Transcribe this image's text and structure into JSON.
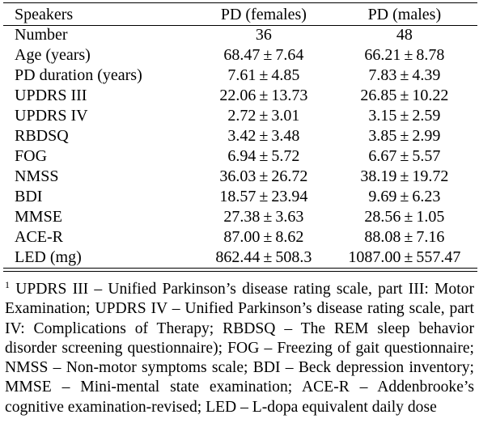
{
  "table": {
    "headers": [
      "Speakers",
      "PD (females)",
      "PD (males)"
    ],
    "rows": [
      {
        "label": "Number",
        "female": "36",
        "male": "48"
      },
      {
        "label": "Age (years)",
        "female_mean": "68.47",
        "female_sd": "7.64",
        "male_mean": "66.21",
        "male_sd": "8.78"
      },
      {
        "label": "PD duration (years)",
        "female_mean": "7.61",
        "female_sd": "4.85",
        "male_mean": "7.83",
        "male_sd": "4.39"
      },
      {
        "label": "UPDRS III",
        "female_mean": "22.06",
        "female_sd": "13.73",
        "male_mean": "26.85",
        "male_sd": "10.22"
      },
      {
        "label": "UPDRS IV",
        "female_mean": "2.72",
        "female_sd": "3.01",
        "male_mean": "3.15",
        "male_sd": "2.59"
      },
      {
        "label": "RBDSQ",
        "female_mean": "3.42",
        "female_sd": "3.48",
        "male_mean": "3.85",
        "male_sd": "2.99"
      },
      {
        "label": "FOG",
        "female_mean": "6.94",
        "female_sd": "5.72",
        "male_mean": "6.67",
        "male_sd": "5.57"
      },
      {
        "label": "NMSS",
        "female_mean": "36.03",
        "female_sd": "26.72",
        "male_mean": "38.19",
        "male_sd": "19.72"
      },
      {
        "label": "BDI",
        "female_mean": "18.57",
        "female_sd": "23.94",
        "male_mean": "9.69",
        "male_sd": "6.23"
      },
      {
        "label": "MMSE",
        "female_mean": "27.38",
        "female_sd": "3.63",
        "male_mean": "28.56",
        "male_sd": "1.05"
      },
      {
        "label": "ACE-R",
        "female_mean": "87.00",
        "female_sd": "8.62",
        "male_mean": "88.08",
        "male_sd": "7.16"
      },
      {
        "label": "LED (mg)",
        "female_mean": "862.44",
        "female_sd": "508.3",
        "male_mean": "1087.00",
        "male_sd": "557.47"
      }
    ],
    "pm_symbol": "±"
  },
  "footnote": {
    "marker": "1",
    "text": "UPDRS III – Unified Parkinson’s disease rating scale, part III: Motor Examination; UPDRS IV – Unified Parkinson’s disease rating scale, part IV: Complications of Therapy; RBDSQ – The REM sleep behavior disorder screening questionnaire); FOG – Freezing of gait questionnaire; NMSS – Non-motor symptoms scale; BDI – Beck depression inventory; MMSE – Mini-mental state examination; ACE-R – Addenbrooke’s cognitive examination-revised; LED – L-dopa equivalent daily dose"
  }
}
